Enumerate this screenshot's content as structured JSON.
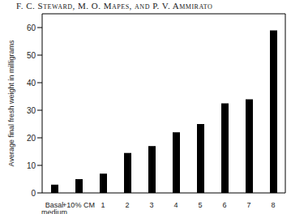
{
  "chart_data": {
    "type": "bar",
    "title": "F. C. Steward, M. O. Mapes, and P. V. Ammirato",
    "ylabel": "Average final fresh weight in milligrams",
    "categories": [
      "Basal medium",
      "+10% CM",
      "1",
      "2",
      "3",
      "4",
      "5",
      "6",
      "7",
      "8"
    ],
    "values": [
      3,
      5,
      7,
      14.5,
      17,
      22,
      25,
      32.5,
      34,
      59
    ],
    "color": "#000000",
    "ylim": [
      0,
      65
    ],
    "yticks": [
      0,
      10,
      20,
      30,
      40,
      50,
      60
    ],
    "grid": false
  }
}
